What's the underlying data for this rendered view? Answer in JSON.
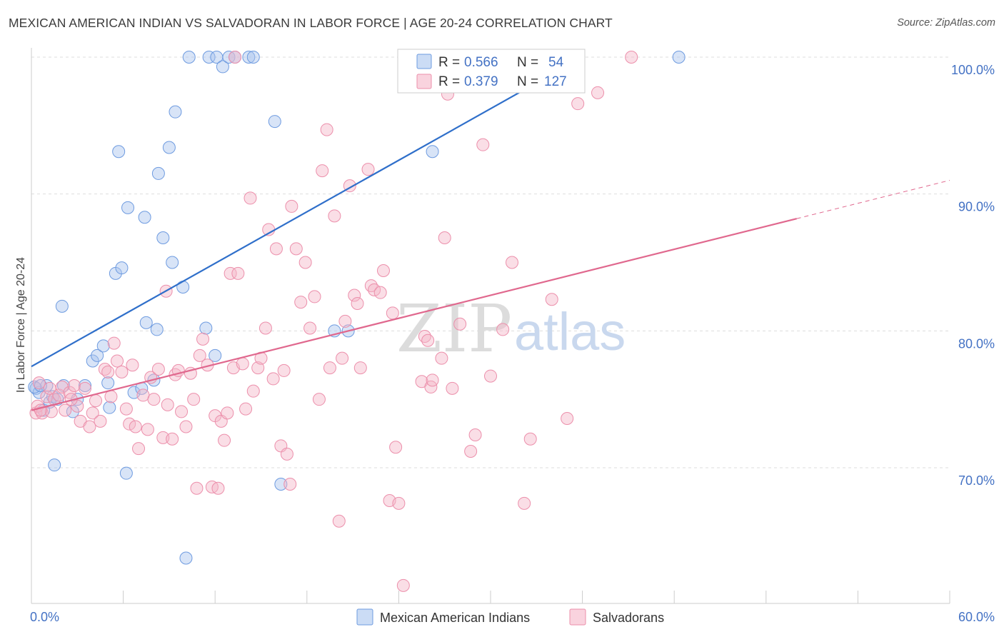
{
  "title": "MEXICAN AMERICAN INDIAN VS SALVADORAN IN LABOR FORCE | AGE 20-24 CORRELATION CHART",
  "source": "Source: ZipAtlas.com",
  "watermark": {
    "zip": "ZIP",
    "atlas": "atlas"
  },
  "legend_top": {
    "rows": [
      {
        "r_label": "R =",
        "r_value": "0.566",
        "n_label": "N =",
        "n_value": "54",
        "color": "#a9c4ee"
      },
      {
        "r_label": "R =",
        "r_value": "0.379",
        "n_label": "N =",
        "n_value": "127",
        "color": "#f5b6c8"
      }
    ]
  },
  "legend_bottom": [
    {
      "label": "Mexican American Indians",
      "color": "#a9c4ee"
    },
    {
      "label": "Salvadorans",
      "color": "#f5b6c8"
    }
  ],
  "chart_data": {
    "type": "scatter",
    "title": "MEXICAN AMERICAN INDIAN VS SALVADORAN IN LABOR FORCE | AGE 20-24 CORRELATION CHART",
    "xlabel": "",
    "ylabel": "In Labor Force | Age 20-24",
    "xlim": [
      0,
      60
    ],
    "ylim": [
      60,
      101
    ],
    "x_tick_labels": [
      "0.0%",
      "60.0%"
    ],
    "y_ticks": [
      70,
      80,
      90,
      100
    ],
    "y_tick_labels": [
      "70.0%",
      "80.0%",
      "90.0%",
      "100.0%"
    ],
    "grid": true,
    "series": [
      {
        "name": "Mexican American Indians",
        "color": "#a9c4ee",
        "stroke": "#6e9be0",
        "trend_color": "#2f6fca",
        "trend": {
          "x0": 0,
          "y0": 77.4,
          "x1": 36,
          "y1": 100.0,
          "dash_to_x": 0
        },
        "points": [
          [
            0.3,
            75.8
          ],
          [
            0.5,
            75.5
          ],
          [
            0.8,
            74.2
          ],
          [
            1.0,
            76.0
          ],
          [
            1.2,
            74.8
          ],
          [
            1.4,
            75.2
          ],
          [
            1.5,
            70.2
          ],
          [
            1.7,
            75.0
          ],
          [
            2.0,
            81.8
          ],
          [
            2.1,
            76.0
          ],
          [
            2.7,
            74.1
          ],
          [
            3.0,
            75.0
          ],
          [
            3.5,
            76.0
          ],
          [
            4.0,
            77.8
          ],
          [
            4.3,
            78.2
          ],
          [
            4.7,
            78.9
          ],
          [
            5.0,
            76.2
          ],
          [
            5.1,
            74.4
          ],
          [
            5.5,
            84.2
          ],
          [
            5.7,
            93.1
          ],
          [
            5.9,
            84.6
          ],
          [
            6.2,
            69.6
          ],
          [
            6.3,
            89.0
          ],
          [
            6.7,
            75.5
          ],
          [
            7.2,
            75.8
          ],
          [
            7.4,
            88.3
          ],
          [
            7.5,
            80.6
          ],
          [
            8.0,
            76.4
          ],
          [
            8.2,
            80.1
          ],
          [
            8.3,
            91.5
          ],
          [
            8.6,
            86.8
          ],
          [
            9.0,
            93.4
          ],
          [
            9.2,
            85.0
          ],
          [
            9.4,
            96.0
          ],
          [
            9.9,
            83.2
          ],
          [
            10.1,
            63.4
          ],
          [
            10.3,
            100.0
          ],
          [
            11.4,
            80.2
          ],
          [
            11.6,
            100.0
          ],
          [
            12.0,
            78.2
          ],
          [
            12.1,
            100.0
          ],
          [
            12.5,
            99.3
          ],
          [
            12.9,
            100.0
          ],
          [
            13.3,
            100.0
          ],
          [
            14.2,
            100.0
          ],
          [
            16.3,
            68.8
          ],
          [
            15.9,
            95.3
          ],
          [
            14.5,
            100.0
          ],
          [
            19.8,
            80.0
          ],
          [
            20.7,
            80.0
          ],
          [
            26.2,
            93.1
          ],
          [
            42.3,
            100.0
          ],
          [
            0.2,
            75.9
          ],
          [
            0.6,
            76.0
          ]
        ]
      },
      {
        "name": "Salvadorans",
        "color": "#f5b6c8",
        "stroke": "#ec8fab",
        "trend_color": "#e0688e",
        "trend": {
          "x0": 0,
          "y0": 74.2,
          "x1": 50,
          "y1": 88.2,
          "dash_to_x": 60
        },
        "points": [
          [
            0.3,
            74.0
          ],
          [
            0.4,
            74.5
          ],
          [
            0.5,
            76.2
          ],
          [
            0.7,
            74.0
          ],
          [
            1.0,
            75.2
          ],
          [
            1.2,
            75.8
          ],
          [
            1.3,
            74.1
          ],
          [
            1.5,
            75.0
          ],
          [
            1.8,
            75.3
          ],
          [
            2.0,
            75.9
          ],
          [
            2.2,
            74.2
          ],
          [
            2.5,
            75.5
          ],
          [
            2.8,
            76.0
          ],
          [
            3.0,
            74.5
          ],
          [
            3.2,
            73.4
          ],
          [
            3.5,
            75.8
          ],
          [
            3.8,
            73.0
          ],
          [
            4.0,
            74.0
          ],
          [
            4.2,
            74.9
          ],
          [
            4.5,
            73.4
          ],
          [
            4.8,
            77.2
          ],
          [
            5.0,
            77.0
          ],
          [
            5.2,
            75.2
          ],
          [
            5.4,
            79.1
          ],
          [
            5.6,
            77.8
          ],
          [
            5.9,
            77.0
          ],
          [
            6.2,
            74.3
          ],
          [
            6.4,
            73.2
          ],
          [
            6.6,
            77.5
          ],
          [
            6.8,
            73.0
          ],
          [
            7.0,
            71.4
          ],
          [
            7.3,
            75.3
          ],
          [
            7.6,
            72.8
          ],
          [
            7.8,
            76.6
          ],
          [
            8.0,
            75.0
          ],
          [
            8.3,
            77.2
          ],
          [
            8.6,
            72.2
          ],
          [
            8.9,
            74.6
          ],
          [
            9.2,
            72.1
          ],
          [
            9.4,
            76.8
          ],
          [
            9.6,
            77.1
          ],
          [
            9.8,
            74.1
          ],
          [
            10.1,
            73.0
          ],
          [
            10.4,
            76.9
          ],
          [
            10.6,
            75.0
          ],
          [
            10.8,
            68.5
          ],
          [
            11.0,
            78.2
          ],
          [
            11.2,
            79.4
          ],
          [
            11.5,
            77.5
          ],
          [
            11.8,
            68.6
          ],
          [
            12.0,
            73.8
          ],
          [
            12.2,
            68.5
          ],
          [
            12.4,
            73.4
          ],
          [
            12.6,
            72.0
          ],
          [
            12.8,
            74.0
          ],
          [
            13.0,
            84.2
          ],
          [
            13.2,
            77.3
          ],
          [
            13.5,
            84.2
          ],
          [
            13.8,
            77.6
          ],
          [
            14.0,
            74.3
          ],
          [
            14.3,
            89.7
          ],
          [
            14.5,
            75.6
          ],
          [
            14.8,
            77.3
          ],
          [
            15.0,
            78.0
          ],
          [
            15.3,
            80.2
          ],
          [
            15.5,
            87.4
          ],
          [
            15.8,
            76.5
          ],
          [
            16.0,
            86.0
          ],
          [
            16.3,
            71.6
          ],
          [
            16.5,
            77.1
          ],
          [
            16.7,
            71.0
          ],
          [
            16.9,
            68.8
          ],
          [
            17.0,
            89.1
          ],
          [
            17.3,
            86.0
          ],
          [
            17.6,
            82.1
          ],
          [
            17.9,
            85.0
          ],
          [
            18.2,
            80.2
          ],
          [
            18.5,
            82.5
          ],
          [
            18.8,
            75.0
          ],
          [
            19.0,
            91.7
          ],
          [
            19.3,
            94.7
          ],
          [
            19.5,
            77.3
          ],
          [
            19.8,
            88.4
          ],
          [
            20.1,
            66.1
          ],
          [
            20.3,
            78.0
          ],
          [
            20.5,
            80.7
          ],
          [
            20.8,
            90.6
          ],
          [
            21.1,
            82.6
          ],
          [
            21.3,
            82.0
          ],
          [
            21.5,
            77.3
          ],
          [
            22.0,
            91.8
          ],
          [
            22.2,
            83.3
          ],
          [
            22.4,
            83.0
          ],
          [
            22.8,
            82.8
          ],
          [
            23.0,
            84.4
          ],
          [
            23.4,
            67.6
          ],
          [
            23.6,
            81.3
          ],
          [
            23.8,
            71.5
          ],
          [
            24.0,
            67.4
          ],
          [
            24.3,
            61.4
          ],
          [
            25.5,
            76.3
          ],
          [
            25.7,
            79.6
          ],
          [
            25.9,
            79.3
          ],
          [
            26.1,
            75.9
          ],
          [
            26.2,
            76.4
          ],
          [
            26.8,
            78.0
          ],
          [
            27.0,
            86.8
          ],
          [
            27.2,
            97.3
          ],
          [
            27.5,
            75.8
          ],
          [
            28.0,
            80.5
          ],
          [
            28.7,
            71.2
          ],
          [
            29.0,
            72.4
          ],
          [
            29.5,
            93.6
          ],
          [
            30.0,
            76.7
          ],
          [
            30.8,
            80.1
          ],
          [
            31.4,
            85.0
          ],
          [
            32.2,
            67.4
          ],
          [
            32.6,
            72.1
          ],
          [
            34.0,
            82.3
          ],
          [
            35.0,
            73.6
          ],
          [
            35.7,
            96.6
          ],
          [
            37.0,
            97.4
          ],
          [
            39.2,
            100.0
          ],
          [
            0.6,
            74.2
          ],
          [
            2.6,
            75.0
          ],
          [
            8.8,
            82.9
          ],
          [
            13.3,
            100.0
          ]
        ]
      }
    ]
  }
}
